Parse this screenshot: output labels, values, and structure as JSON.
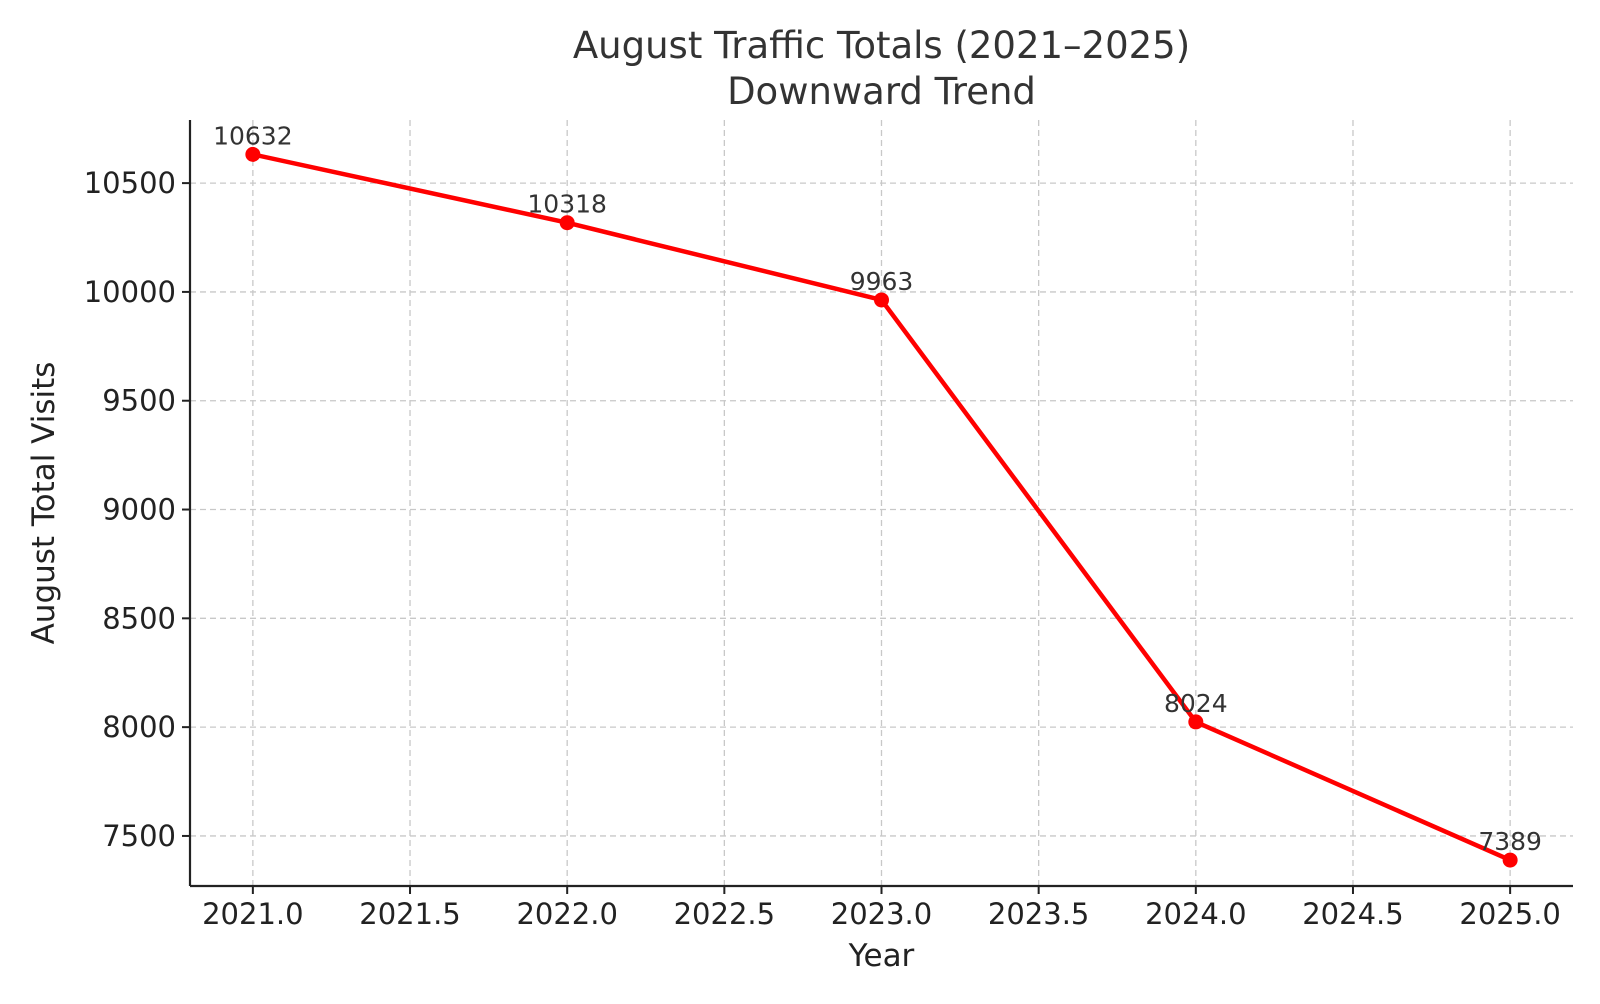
{
  "chart_data": {
    "type": "line",
    "title": [
      "August Traffic Totals (2021–2025)",
      "Downward Trend"
    ],
    "xlabel": "Year",
    "ylabel": "August Total Visits",
    "x": [
      2021,
      2022,
      2023,
      2024,
      2025
    ],
    "series": [
      {
        "values": [
          10632,
          10318,
          9963,
          8024,
          7389
        ],
        "color": "#ff0000",
        "marker": "circle"
      }
    ],
    "data_labels": [
      "10632",
      "10318",
      "9963",
      "8024",
      "7389"
    ],
    "xlim": [
      2020.8,
      2025.2
    ],
    "ylim": [
      7270,
      10790
    ],
    "xticks": [
      2021.0,
      2021.5,
      2022.0,
      2022.5,
      2023.0,
      2023.5,
      2024.0,
      2024.5,
      2025.0
    ],
    "xtick_labels": [
      "2021.0",
      "2021.5",
      "2022.0",
      "2022.5",
      "2023.0",
      "2023.5",
      "2024.0",
      "2024.5",
      "2025.0"
    ],
    "yticks": [
      7500,
      8000,
      8500,
      9000,
      9500,
      10000,
      10500
    ],
    "ytick_labels": [
      "7500",
      "8000",
      "8500",
      "9000",
      "9500",
      "10000",
      "10500"
    ],
    "grid": true,
    "legend": "none"
  }
}
